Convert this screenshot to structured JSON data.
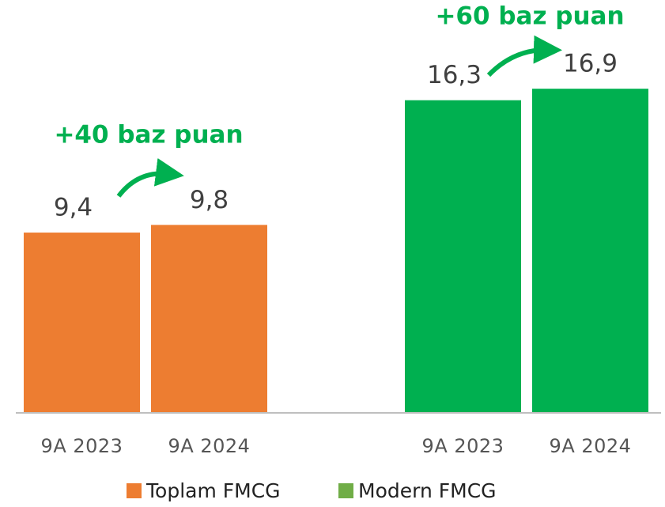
{
  "chart_data": {
    "type": "bar",
    "categories": [
      "9A 2023",
      "9A 2024"
    ],
    "series": [
      {
        "name": "Toplam FMCG",
        "color": "#ed7d31",
        "legend_color": "#ed7d31",
        "values": [
          9.4,
          9.8
        ],
        "value_labels": [
          "9,4",
          "9,8"
        ],
        "annotation": "+40 baz puan"
      },
      {
        "name": "Modern FMCG",
        "color": "#00b050",
        "legend_color": "#70ad47",
        "values": [
          16.3,
          16.9
        ],
        "value_labels": [
          "16,3",
          "16,9"
        ],
        "annotation": "+60 baz puan"
      }
    ],
    "ylim": [
      0,
      20
    ],
    "legend": "bottom"
  }
}
